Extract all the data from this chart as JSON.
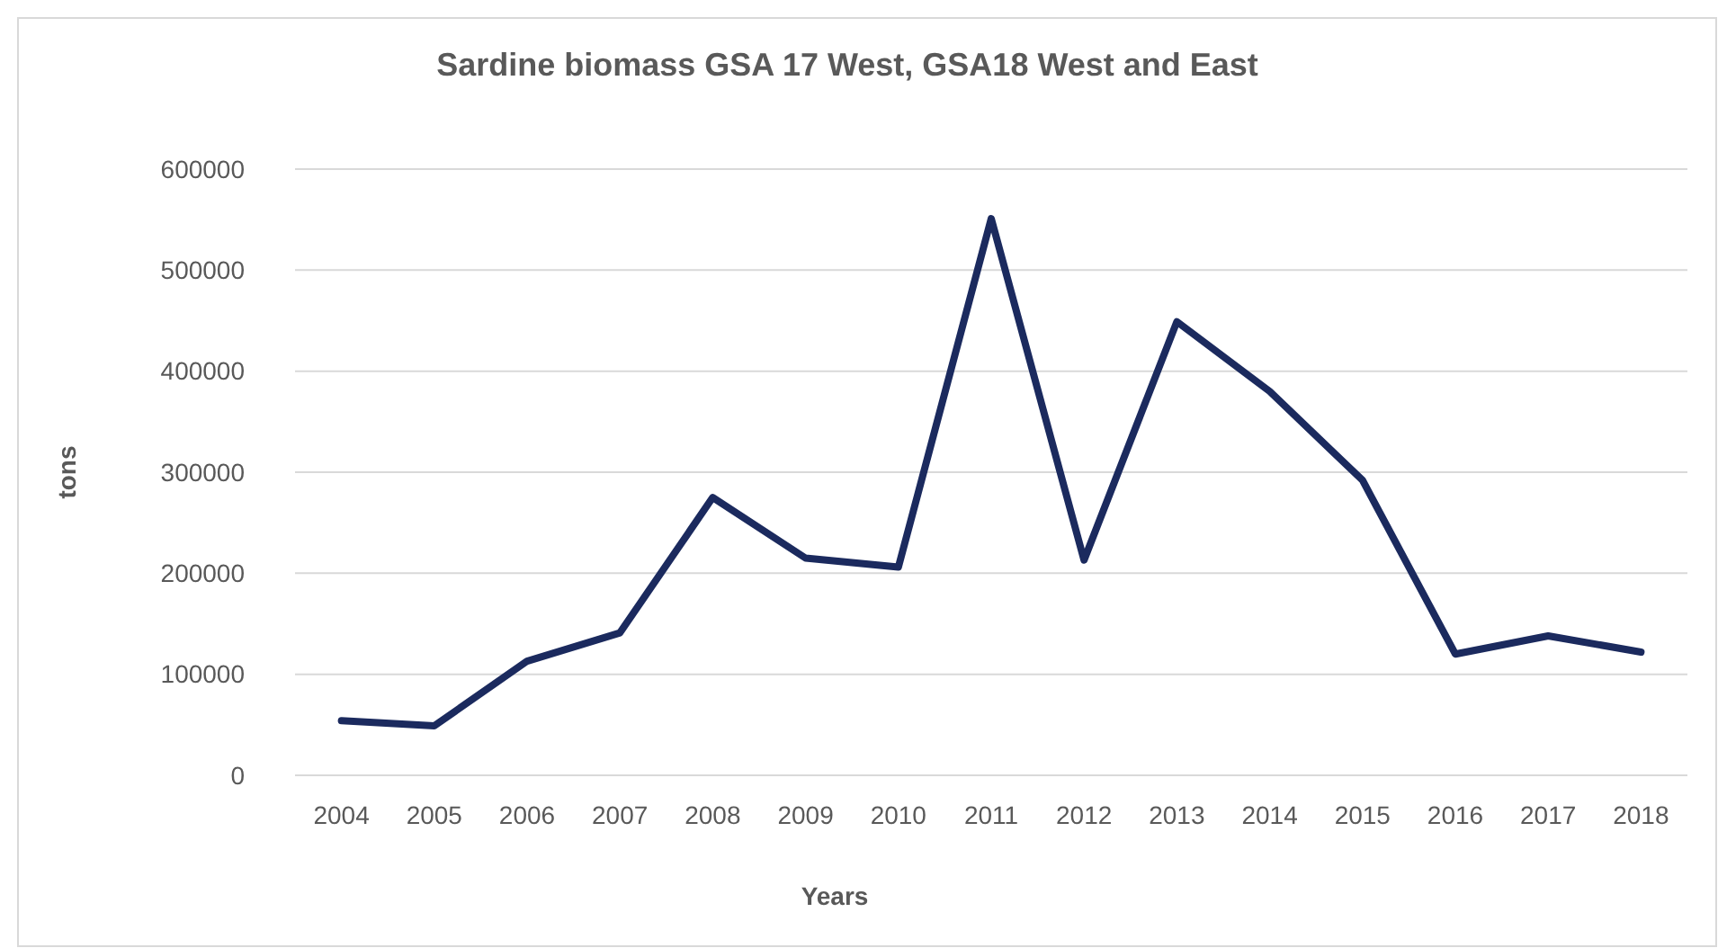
{
  "chart_data": {
    "type": "line",
    "title": "Sardine biomass GSA 17 West, GSA18 West and East",
    "xlabel": "Years",
    "ylabel": "tons",
    "categories": [
      "2004",
      "2005",
      "2006",
      "2007",
      "2008",
      "2009",
      "2010",
      "2011",
      "2012",
      "2013",
      "2014",
      "2015",
      "2016",
      "2017",
      "2018"
    ],
    "series": [
      {
        "color": "#1b2a5e",
        "values": [
          54000,
          49000,
          113000,
          141000,
          275000,
          215000,
          206000,
          551000,
          213000,
          449000,
          380000,
          292000,
          120000,
          138000,
          122000
        ]
      }
    ],
    "ylim": [
      0,
      600000
    ],
    "yticks": [
      0,
      100000,
      200000,
      300000,
      400000,
      500000,
      600000
    ],
    "grid": "y",
    "marker": "none",
    "line_style": "solid"
  }
}
